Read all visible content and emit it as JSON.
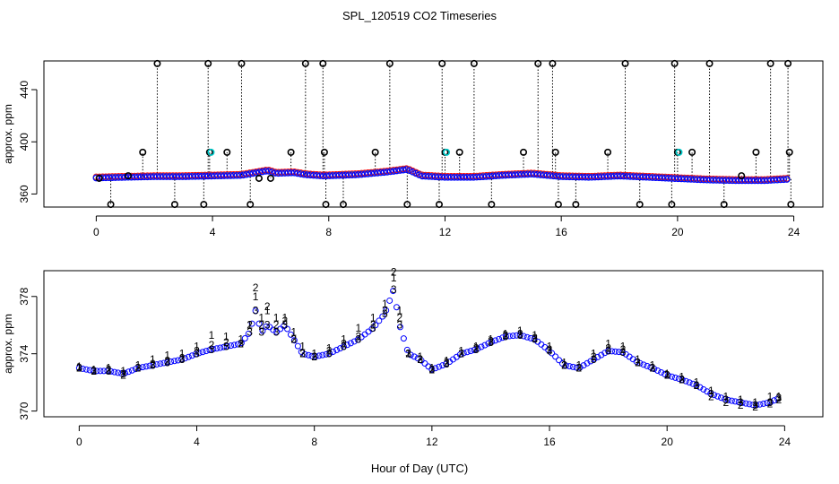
{
  "title": "SPL_120519  CO2 Timeseries",
  "xlabel": "Hour of Day (UTC)",
  "colors": {
    "series1": "#ff0000",
    "series2": "#00cc00",
    "series3": "#0000ff",
    "flagged": "#000000",
    "highlight": "#00cccc",
    "axis": "#000000"
  },
  "chart_data": [
    {
      "type": "scatter",
      "panel": "top",
      "ylabel": "approx. ppm",
      "xlim": [
        -1.8,
        25
      ],
      "ylim": [
        350,
        462
      ],
      "xticks": [
        0,
        4,
        8,
        12,
        16,
        20,
        24
      ],
      "yticks": [
        360,
        400,
        440
      ],
      "baseline_curve": [
        [
          0,
          372.5
        ],
        [
          1,
          373
        ],
        [
          2,
          373.5
        ],
        [
          3,
          373.5
        ],
        [
          4,
          374
        ],
        [
          5,
          374.5
        ],
        [
          5.9,
          378
        ],
        [
          6.2,
          376
        ],
        [
          6.8,
          376.5
        ],
        [
          7.2,
          375
        ],
        [
          7.8,
          374
        ],
        [
          9,
          375
        ],
        [
          10,
          377
        ],
        [
          10.7,
          379
        ],
        [
          11.2,
          374
        ],
        [
          12,
          373
        ],
        [
          13,
          373
        ],
        [
          14,
          374.5
        ],
        [
          15,
          375.5
        ],
        [
          16,
          373.5
        ],
        [
          17,
          373
        ],
        [
          18,
          374
        ],
        [
          19,
          373
        ],
        [
          20,
          372
        ],
        [
          21,
          371
        ],
        [
          22,
          370.5
        ],
        [
          23,
          370.5
        ],
        [
          23.8,
          371.5
        ]
      ],
      "flagged_points": {
        "x": [
          0.1,
          0.5,
          1.1,
          1.6,
          2.1,
          2.7,
          3.7,
          3.85,
          3.9,
          4.5,
          5.0,
          5.3,
          5.6,
          6.0,
          6.7,
          7.2,
          7.8,
          7.85,
          7.9,
          8.5,
          9.6,
          10.1,
          10.7,
          11.8,
          11.9,
          12.0,
          12.5,
          13.0,
          13.6,
          14.7,
          15.2,
          15.7,
          15.8,
          15.9,
          16.5,
          17.6,
          18.2,
          18.7,
          19.8,
          19.9,
          20.0,
          20.5,
          21.1,
          21.6,
          22.2,
          22.7,
          23.2,
          23.8,
          23.85,
          23.9
        ],
        "y": [
          372,
          352,
          374,
          392,
          460,
          352,
          352,
          460,
          392,
          392,
          460,
          352,
          372,
          372,
          392,
          460,
          460,
          392,
          352,
          352,
          392,
          460,
          352,
          352,
          460,
          392,
          392,
          460,
          352,
          392,
          460,
          460,
          392,
          352,
          352,
          392,
          460,
          352,
          352,
          460,
          392,
          392,
          460,
          352,
          374,
          392,
          460,
          460,
          392,
          352
        ]
      },
      "highlight_points": {
        "x": [
          3.95,
          12.05,
          20.05
        ],
        "y": [
          392,
          392,
          392
        ]
      }
    },
    {
      "type": "scatter",
      "panel": "bottom",
      "ylabel": "approx. ppm",
      "xlim": [
        -1.2,
        25.3
      ],
      "ylim": [
        369.6,
        379.8
      ],
      "xticks": [
        0,
        4,
        8,
        12,
        16,
        20,
        24
      ],
      "yticks": [
        370,
        374,
        378
      ],
      "point_symbols": [
        "1",
        "2",
        "3"
      ],
      "series": [
        {
          "name": "1",
          "offset": 0.35,
          "points": [
            [
              0,
              373.1
            ],
            [
              0.5,
              372.9
            ],
            [
              1,
              373.0
            ],
            [
              1.5,
              372.8
            ],
            [
              2,
              373.2
            ],
            [
              2.5,
              373.6
            ],
            [
              3,
              373.9
            ],
            [
              3.5,
              374.0
            ],
            [
              4,
              374.5
            ],
            [
              4.5,
              375.3
            ],
            [
              5,
              375.2
            ],
            [
              5.5,
              375.0
            ],
            [
              5.8,
              376.0
            ],
            [
              6,
              378.0
            ],
            [
              6.2,
              376.5
            ],
            [
              6.4,
              377.0
            ],
            [
              6.7,
              376.5
            ],
            [
              7,
              376.5
            ],
            [
              7.3,
              375.5
            ],
            [
              7.6,
              374.5
            ],
            [
              8,
              374.0
            ],
            [
              8.5,
              374.4
            ],
            [
              9,
              375.0
            ],
            [
              9.5,
              375.8
            ],
            [
              10,
              376.5
            ],
            [
              10.4,
              377.5
            ],
            [
              10.7,
              379.3
            ],
            [
              10.9,
              377.0
            ],
            [
              11.2,
              374.0
            ],
            [
              11.6,
              373.8
            ],
            [
              12,
              373.0
            ],
            [
              12.5,
              373.5
            ],
            [
              13,
              374.2
            ],
            [
              13.5,
              374.5
            ],
            [
              14,
              375.0
            ],
            [
              14.5,
              375.4
            ],
            [
              15,
              375.6
            ],
            [
              15.5,
              375.3
            ],
            [
              16,
              374.5
            ],
            [
              16.5,
              373.4
            ],
            [
              17,
              373.2
            ],
            [
              17.5,
              374.0
            ],
            [
              18,
              374.7
            ],
            [
              18.5,
              374.5
            ],
            [
              19,
              373.6
            ],
            [
              19.5,
              373.2
            ],
            [
              20,
              372.6
            ],
            [
              20.5,
              372.4
            ],
            [
              21,
              372.0
            ],
            [
              21.5,
              371.4
            ],
            [
              22,
              371.0
            ],
            [
              22.5,
              370.8
            ],
            [
              23,
              370.6
            ],
            [
              23.5,
              371.0
            ],
            [
              23.8,
              371.0
            ]
          ]
        },
        {
          "name": "2",
          "offset": 0.0,
          "points": [
            [
              0,
              373.0
            ],
            [
              0.5,
              372.8
            ],
            [
              1,
              372.9
            ],
            [
              1.5,
              372.5
            ],
            [
              2,
              373.0
            ],
            [
              2.5,
              373.3
            ],
            [
              3,
              373.5
            ],
            [
              3.5,
              373.7
            ],
            [
              4,
              374.2
            ],
            [
              4.5,
              374.6
            ],
            [
              5,
              374.8
            ],
            [
              5.5,
              374.7
            ],
            [
              5.8,
              376.0
            ],
            [
              6,
              378.6
            ],
            [
              6.2,
              376.0
            ],
            [
              6.4,
              377.3
            ],
            [
              6.7,
              376.0
            ],
            [
              7,
              376.3
            ],
            [
              7.3,
              375.0
            ],
            [
              7.6,
              374.0
            ],
            [
              8,
              373.8
            ],
            [
              8.5,
              374.2
            ],
            [
              9,
              374.7
            ],
            [
              9.5,
              375.2
            ],
            [
              10,
              376.0
            ],
            [
              10.4,
              377.0
            ],
            [
              10.7,
              379.7
            ],
            [
              10.9,
              376.5
            ],
            [
              11.2,
              374.0
            ],
            [
              11.6,
              373.6
            ],
            [
              12,
              372.9
            ],
            [
              12.5,
              373.4
            ],
            [
              13,
              374.0
            ],
            [
              13.5,
              374.4
            ],
            [
              14,
              374.9
            ],
            [
              14.5,
              375.3
            ],
            [
              15,
              375.4
            ],
            [
              15.5,
              375.1
            ],
            [
              16,
              374.3
            ],
            [
              16.5,
              373.2
            ],
            [
              17,
              373.0
            ],
            [
              17.5,
              373.8
            ],
            [
              18,
              374.4
            ],
            [
              18.5,
              374.3
            ],
            [
              19,
              373.4
            ],
            [
              19.5,
              373.0
            ],
            [
              20,
              372.5
            ],
            [
              20.5,
              372.2
            ],
            [
              21,
              371.8
            ],
            [
              21.5,
              371.0
            ],
            [
              22,
              370.6
            ],
            [
              22.5,
              370.4
            ],
            [
              23,
              370.3
            ],
            [
              23.5,
              370.5
            ],
            [
              23.8,
              370.8
            ]
          ]
        },
        {
          "name": "3",
          "offset": -0.15,
          "points": [
            [
              0,
              373.0
            ],
            [
              0.5,
              372.8
            ],
            [
              1,
              372.8
            ],
            [
              1.5,
              372.6
            ],
            [
              2,
              373.0
            ],
            [
              2.5,
              373.2
            ],
            [
              3,
              373.4
            ],
            [
              3.5,
              373.6
            ],
            [
              4,
              374.0
            ],
            [
              4.5,
              374.3
            ],
            [
              5,
              374.5
            ],
            [
              5.5,
              374.7
            ],
            [
              5.8,
              375.5
            ],
            [
              6,
              377.0
            ],
            [
              6.2,
              375.5
            ],
            [
              6.4,
              376.0
            ],
            [
              6.7,
              375.5
            ],
            [
              7,
              376.0
            ],
            [
              7.3,
              375.0
            ],
            [
              7.6,
              374.0
            ],
            [
              8,
              373.8
            ],
            [
              8.5,
              374.0
            ],
            [
              9,
              374.5
            ],
            [
              9.5,
              375.0
            ],
            [
              10,
              375.8
            ],
            [
              10.4,
              376.8
            ],
            [
              10.7,
              378.5
            ],
            [
              10.9,
              376.0
            ],
            [
              11.2,
              374.0
            ],
            [
              11.6,
              373.6
            ],
            [
              12,
              372.9
            ],
            [
              12.5,
              373.3
            ],
            [
              13,
              374.0
            ],
            [
              13.5,
              374.3
            ],
            [
              14,
              374.8
            ],
            [
              14.5,
              375.2
            ],
            [
              15,
              375.3
            ],
            [
              15.5,
              375.0
            ],
            [
              16,
              374.2
            ],
            [
              16.5,
              373.2
            ],
            [
              17,
              373.0
            ],
            [
              17.5,
              373.6
            ],
            [
              18,
              374.2
            ],
            [
              18.5,
              374.1
            ],
            [
              19,
              373.4
            ],
            [
              19.5,
              373.0
            ],
            [
              20,
              372.5
            ],
            [
              20.5,
              372.2
            ],
            [
              21,
              371.8
            ],
            [
              21.5,
              371.2
            ],
            [
              22,
              370.8
            ],
            [
              22.5,
              370.6
            ],
            [
              23,
              370.4
            ],
            [
              23.5,
              370.6
            ],
            [
              23.8,
              370.9
            ]
          ]
        }
      ]
    }
  ]
}
